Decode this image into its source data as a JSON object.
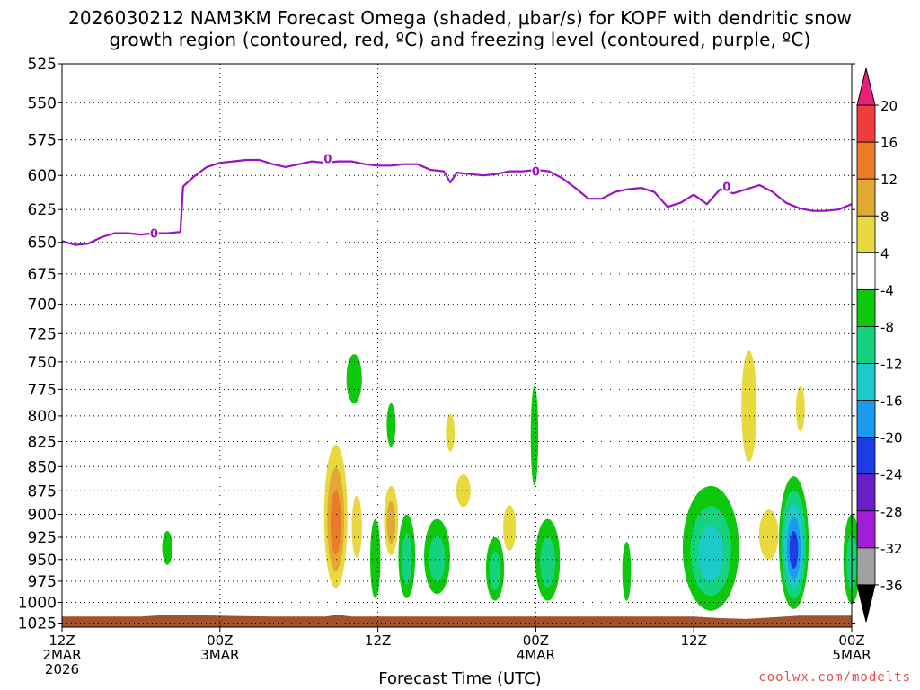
{
  "title": {
    "line1": "2026030212 NAM3KM Forecast Omega (shaded, μbar/s) for KOPF with dendritic snow",
    "line2": "growth region (contoured, red, ºC) and freezing level (contoured, purple, ºC)"
  },
  "credit": "coolwx.com/modelts",
  "chart_data": {
    "type": "heatmap",
    "xlabel": "Forecast Time (UTC)",
    "ylabel": "",
    "y_axis": {
      "ticks": [
        525,
        550,
        575,
        600,
        625,
        650,
        675,
        700,
        725,
        750,
        775,
        800,
        825,
        850,
        875,
        900,
        925,
        950,
        975,
        1000,
        1025
      ],
      "range": [
        525,
        1030
      ],
      "scale": "log",
      "reversed": true
    },
    "x_axis": {
      "range_hours": [
        0,
        60
      ],
      "ticks": [
        {
          "hour": 0,
          "lines": [
            "12Z",
            "2MAR",
            "2026"
          ]
        },
        {
          "hour": 12,
          "lines": [
            "00Z",
            "3MAR"
          ]
        },
        {
          "hour": 24,
          "lines": [
            "12Z"
          ]
        },
        {
          "hour": 36,
          "lines": [
            "00Z",
            "4MAR"
          ]
        },
        {
          "hour": 48,
          "lines": [
            "12Z"
          ]
        },
        {
          "hour": 60,
          "lines": [
            "00Z",
            "5MAR"
          ]
        }
      ]
    },
    "grid": true,
    "colorbar": {
      "labels": [
        "20",
        "16",
        "12",
        "8",
        "4",
        "-4",
        "-8",
        "-12",
        "-16",
        "-20",
        "-24",
        "-28",
        "-32",
        "-36"
      ],
      "bins": [
        {
          "from": 20,
          "to": null,
          "color": "#e8207a"
        },
        {
          "from": 16,
          "to": 20,
          "color": "#f23c3c"
        },
        {
          "from": 12,
          "to": 16,
          "color": "#ec7a28"
        },
        {
          "from": 8,
          "to": 12,
          "color": "#e2a834"
        },
        {
          "from": 4,
          "to": 8,
          "color": "#e8da3e"
        },
        {
          "from": -4,
          "to": 4,
          "color": "#ffffff"
        },
        {
          "from": -8,
          "to": -4,
          "color": "#0ec80e"
        },
        {
          "from": -12,
          "to": -8,
          "color": "#14d27e"
        },
        {
          "from": -16,
          "to": -12,
          "color": "#1ccaca"
        },
        {
          "from": -20,
          "to": -16,
          "color": "#1c9af0"
        },
        {
          "from": -24,
          "to": -20,
          "color": "#1e3ce6"
        },
        {
          "from": -28,
          "to": -24,
          "color": "#6a1ec8"
        },
        {
          "from": -32,
          "to": -28,
          "color": "#a21ed6"
        },
        {
          "from": -36,
          "to": -32,
          "color": "#a0a0a0"
        },
        {
          "from": null,
          "to": -36,
          "color": "#000000"
        }
      ]
    },
    "freezing_level": {
      "label": "0",
      "color": "#9a12c8",
      "points": [
        [
          0,
          649
        ],
        [
          1,
          652
        ],
        [
          2,
          651
        ],
        [
          3,
          646
        ],
        [
          4,
          643
        ],
        [
          5,
          643
        ],
        [
          6,
          644
        ],
        [
          7,
          643
        ],
        [
          8,
          643
        ],
        [
          9,
          642
        ],
        [
          9.2,
          608
        ],
        [
          10,
          601
        ],
        [
          11,
          594
        ],
        [
          12,
          591
        ],
        [
          13,
          590
        ],
        [
          14,
          589
        ],
        [
          15,
          589
        ],
        [
          16,
          592
        ],
        [
          17,
          594
        ],
        [
          18,
          592
        ],
        [
          19,
          590
        ],
        [
          20,
          591
        ],
        [
          21,
          590
        ],
        [
          22,
          590
        ],
        [
          23,
          592
        ],
        [
          24,
          593
        ],
        [
          25,
          593
        ],
        [
          26,
          592
        ],
        [
          27,
          592
        ],
        [
          28,
          596
        ],
        [
          29,
          597
        ],
        [
          29.5,
          605
        ],
        [
          30,
          598
        ],
        [
          31,
          599
        ],
        [
          32,
          600
        ],
        [
          33,
          599
        ],
        [
          34,
          597
        ],
        [
          35,
          597
        ],
        [
          36,
          596
        ],
        [
          37,
          597
        ],
        [
          38,
          602
        ],
        [
          39,
          609
        ],
        [
          40,
          617
        ],
        [
          41,
          617
        ],
        [
          42,
          612
        ],
        [
          43,
          610
        ],
        [
          44,
          609
        ],
        [
          45,
          612
        ],
        [
          46,
          623
        ],
        [
          47,
          620
        ],
        [
          48,
          614
        ],
        [
          49,
          621
        ],
        [
          50,
          610
        ],
        [
          51,
          613
        ],
        [
          52,
          610
        ],
        [
          53,
          607
        ],
        [
          54,
          612
        ],
        [
          55,
          620
        ],
        [
          56,
          624
        ],
        [
          57,
          626
        ],
        [
          58,
          626
        ],
        [
          59,
          625
        ],
        [
          60,
          621
        ]
      ],
      "label_points": [
        [
          7.0,
          643
        ],
        [
          20.2,
          588
        ],
        [
          36.0,
          597
        ],
        [
          50.5,
          608
        ]
      ]
    },
    "dendritic_growth_region": [],
    "omega_regions": [
      {
        "hour": 8.0,
        "top": 918,
        "bottom": 956,
        "width": 0.5,
        "layers": [
          "#0ec80e"
        ]
      },
      {
        "hour": 22.2,
        "top": 743,
        "bottom": 788,
        "width": 0.9,
        "layers": [
          "#0ec80e"
        ]
      },
      {
        "hour": 20.8,
        "top": 828,
        "bottom": 983,
        "width": 1.5,
        "layers": [
          "#e8da3e",
          "#e2a834",
          "#ec7a28"
        ]
      },
      {
        "hour": 22.4,
        "top": 880,
        "bottom": 948,
        "width": 0.5,
        "layers": [
          "#e8da3e"
        ]
      },
      {
        "hour": 23.8,
        "top": 905,
        "bottom": 995,
        "width": 0.5,
        "layers": [
          "#0ec80e"
        ]
      },
      {
        "hour": 25.0,
        "top": 788,
        "bottom": 830,
        "width": 0.4,
        "layers": [
          "#0ec80e"
        ]
      },
      {
        "hour": 25.0,
        "top": 870,
        "bottom": 945,
        "width": 0.8,
        "layers": [
          "#e8da3e",
          "#e2a834"
        ]
      },
      {
        "hour": 26.2,
        "top": 900,
        "bottom": 995,
        "width": 1.0,
        "layers": [
          "#0ec80e",
          "#14d27e"
        ]
      },
      {
        "hour": 29.5,
        "top": 798,
        "bottom": 835,
        "width": 0.4,
        "layers": [
          "#e8da3e"
        ]
      },
      {
        "hour": 28.5,
        "top": 905,
        "bottom": 990,
        "width": 1.7,
        "layers": [
          "#0ec80e",
          "#14d27e"
        ]
      },
      {
        "hour": 30.5,
        "top": 858,
        "bottom": 892,
        "width": 0.8,
        "layers": [
          "#e8da3e"
        ]
      },
      {
        "hour": 32.9,
        "top": 925,
        "bottom": 998,
        "width": 1.1,
        "layers": [
          "#0ec80e",
          "#14d27e"
        ]
      },
      {
        "hour": 34.0,
        "top": 890,
        "bottom": 940,
        "width": 0.7,
        "layers": [
          "#e8da3e"
        ]
      },
      {
        "hour": 35.9,
        "top": 772,
        "bottom": 870,
        "width": 0.3,
        "layers": [
          "#0ec80e"
        ]
      },
      {
        "hour": 36.9,
        "top": 905,
        "bottom": 998,
        "width": 1.6,
        "layers": [
          "#0ec80e",
          "#14d27e"
        ]
      },
      {
        "hour": 42.9,
        "top": 930,
        "bottom": 998,
        "width": 0.4,
        "layers": [
          "#0ec80e"
        ]
      },
      {
        "hour": 49.3,
        "top": 870,
        "bottom": 1010,
        "width": 4.0,
        "layers": [
          "#0ec80e",
          "#14d27e",
          "#1ccaca"
        ]
      },
      {
        "hour": 52.2,
        "top": 740,
        "bottom": 845,
        "width": 0.9,
        "layers": [
          "#e8da3e"
        ]
      },
      {
        "hour": 53.7,
        "top": 895,
        "bottom": 950,
        "width": 1.2,
        "layers": [
          "#e8da3e"
        ]
      },
      {
        "hour": 56.1,
        "top": 772,
        "bottom": 815,
        "width": 0.4,
        "layers": [
          "#e8da3e"
        ]
      },
      {
        "hour": 55.6,
        "top": 860,
        "bottom": 1008,
        "width": 2.0,
        "layers": [
          "#0ec80e",
          "#14d27e",
          "#1ccaca",
          "#1c9af0",
          "#1e3ce6"
        ]
      },
      {
        "hour": 60.0,
        "top": 900,
        "bottom": 1002,
        "width": 1.0,
        "layers": [
          "#0ec80e",
          "#14d27e"
        ]
      }
    ],
    "surface_pressure": {
      "color": "#a0522d",
      "points": [
        [
          0,
          1017
        ],
        [
          6,
          1017
        ],
        [
          8,
          1015
        ],
        [
          12,
          1016
        ],
        [
          16,
          1017
        ],
        [
          20,
          1017
        ],
        [
          21,
          1015
        ],
        [
          22,
          1017
        ],
        [
          36,
          1017
        ],
        [
          48,
          1017
        ],
        [
          50,
          1019
        ],
        [
          52,
          1020
        ],
        [
          54,
          1018
        ],
        [
          56,
          1016
        ],
        [
          60,
          1016
        ]
      ]
    }
  }
}
